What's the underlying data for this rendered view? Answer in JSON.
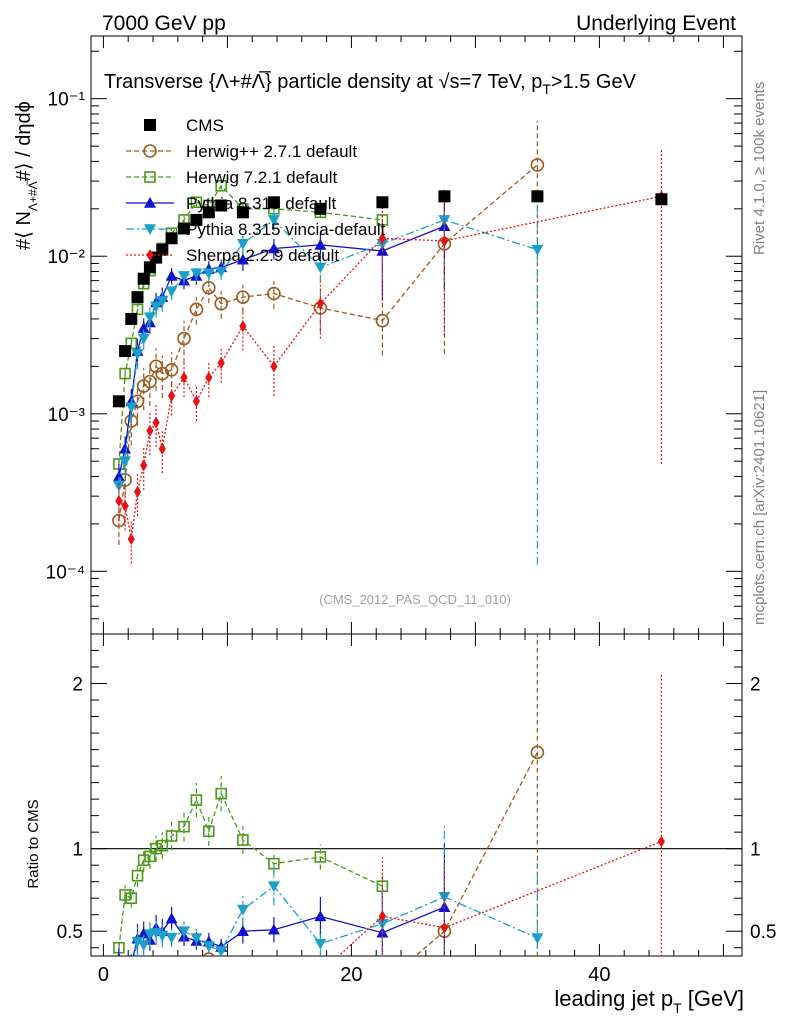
{
  "header": {
    "left": "7000 GeV pp",
    "right": "Underlying Event"
  },
  "side": {
    "rivet": "Rivet 4.1.0, ≥ 100k events",
    "mcplots": "mcplots.cern.ch [arXiv:2401.10621]"
  },
  "chart_data": {
    "type": "scatter",
    "title": "Transverse {Λ+#Λ̅} particle density at √s=7 TeV, pT>1.5 GeV",
    "title_parts": {
      "main": "Transverse {Λ+#Λ̅} particle density at √s=7 TeV, p",
      "sub": "T",
      "tail": ">1.5 GeV"
    },
    "ylabel_parts": {
      "pre": "#⟨ N",
      "sub": "Λ+#Λ̅",
      "mid": "#⟩ / dηdϕ"
    },
    "xlabel_parts": {
      "main": "leading jet p",
      "sub": "T",
      "tail": " [GeV]"
    },
    "ratio_ylabel": "Ratio to CMS",
    "watermark": "(CMS_2012_PAS_QCD_11_010)",
    "xlim": [
      -1,
      51.5
    ],
    "ylim_main": [
      4e-05,
      0.25
    ],
    "ylim_ratio": [
      0.35,
      2.3
    ],
    "x_ticks": [
      0,
      20,
      40
    ],
    "x_tick_labels": [
      "0",
      "20",
      "40"
    ],
    "y_ticks_main": [
      0.0001,
      0.001,
      0.01,
      0.1
    ],
    "y_tick_labels_main": [
      "10⁻⁴",
      "10⁻³",
      "10⁻²",
      "10⁻¹"
    ],
    "y_ticks_ratio": [
      0.5,
      1,
      2
    ],
    "y_tick_labels_ratio": [
      "0.5",
      "1",
      "2"
    ],
    "legend_position": "top-left",
    "series": [
      {
        "name": "CMS",
        "color": "#000000",
        "marker": "square-filled",
        "dash": "",
        "x": [
          1.25,
          1.75,
          2.25,
          2.75,
          3.25,
          3.75,
          4.25,
          4.75,
          5.5,
          6.5,
          7.5,
          8.5,
          9.5,
          11.25,
          13.75,
          17.5,
          22.5,
          27.5,
          35,
          45
        ],
        "y": [
          0.0012,
          0.0025,
          0.004,
          0.0055,
          0.0072,
          0.0085,
          0.0098,
          0.011,
          0.013,
          0.015,
          0.017,
          0.019,
          0.021,
          0.019,
          0.022,
          0.02,
          0.022,
          0.024,
          0.024,
          0.023
        ],
        "err": [
          0,
          0,
          0,
          0,
          0,
          0,
          0,
          0,
          0,
          0,
          0,
          0,
          0,
          0,
          0,
          0,
          0,
          0,
          0,
          0
        ]
      },
      {
        "name": "Herwig++ 2.7.1 default",
        "color": "#9b5a1e",
        "marker": "circle-open",
        "dash": "5,3",
        "x": [
          1.25,
          1.75,
          2.25,
          2.75,
          3.25,
          3.75,
          4.25,
          4.75,
          5.5,
          6.5,
          7.5,
          8.5,
          9.5,
          11.25,
          13.75,
          17.5,
          22.5,
          27.5,
          35,
          45
        ],
        "y": [
          0.00021,
          0.00038,
          0.0009,
          0.0012,
          0.0015,
          0.0016,
          0.002,
          0.0018,
          0.0019,
          0.003,
          0.0046,
          0.0063,
          0.005,
          0.0055,
          0.0058,
          0.0047,
          0.0039,
          0.012,
          0.038,
          0
        ],
        "err": [
          0.3,
          0.3,
          0.3,
          0.3,
          0.3,
          0.3,
          0.3,
          0.3,
          0.3,
          0.3,
          0.2,
          0.2,
          0.2,
          0.2,
          0.2,
          0.3,
          0.4,
          0.8,
          0.9,
          0
        ]
      },
      {
        "name": "Herwig 7.2.1 default",
        "color": "#4a9a1a",
        "marker": "square-open",
        "dash": "5,3",
        "x": [
          1.25,
          1.75,
          2.25,
          2.75,
          3.25,
          3.75,
          4.25,
          4.75,
          5.5,
          6.5,
          7.5,
          8.5,
          9.5,
          11.25,
          13.75,
          17.5,
          22.5,
          27.5,
          35,
          45
        ],
        "y": [
          0.00048,
          0.0018,
          0.0028,
          0.0046,
          0.0067,
          0.0081,
          0.0098,
          0.0112,
          0.014,
          0.017,
          0.022,
          0.021,
          0.028,
          0.02,
          0.02,
          0.019,
          0.017,
          0,
          0,
          0
        ],
        "err": [
          0.08,
          0.08,
          0.08,
          0.08,
          0.08,
          0.08,
          0.08,
          0.08,
          0.08,
          0.08,
          0.08,
          0.08,
          0.08,
          0.08,
          0.08,
          0.08,
          0.08,
          0,
          0,
          0
        ]
      },
      {
        "name": "Pythia 8.315 default",
        "color": "#1010d0",
        "marker": "triangle-up",
        "dash": "",
        "x": [
          1.25,
          1.75,
          2.25,
          2.75,
          3.25,
          3.75,
          4.25,
          4.75,
          5.5,
          6.5,
          7.5,
          8.5,
          9.5,
          11.25,
          13.75,
          17.5,
          22.5,
          27.5
        ],
        "y": [
          0.0004,
          0.0006,
          0.0012,
          0.0025,
          0.0035,
          0.0038,
          0.0051,
          0.0055,
          0.0075,
          0.007,
          0.0075,
          0.0083,
          0.0085,
          0.0095,
          0.0112,
          0.0118,
          0.0108,
          0.0155
        ],
        "err": [
          0.2,
          0.2,
          0.2,
          0.2,
          0.15,
          0.15,
          0.15,
          0.15,
          0.12,
          0.12,
          0.12,
          0.12,
          0.12,
          0.15,
          0.15,
          0.2,
          0.5,
          0.6
        ]
      },
      {
        "name": "Pythia 8.315 vincia-default",
        "color": "#1aa0c8",
        "marker": "triangle-down",
        "dash": "8,3,2,3",
        "x": [
          1.25,
          1.75,
          2.25,
          2.75,
          3.25,
          3.75,
          4.25,
          4.75,
          5.5,
          6.5,
          7.5,
          8.5,
          9.5,
          11.25,
          13.75,
          17.5,
          22.5,
          27.5,
          35
        ],
        "y": [
          0.00035,
          0.0005,
          0.0011,
          0.0024,
          0.003,
          0.0041,
          0.0048,
          0.0052,
          0.006,
          0.0075,
          0.0078,
          0.0078,
          0.008,
          0.012,
          0.017,
          0.0085,
          0.012,
          0.017,
          0.011
        ],
        "err": [
          0.2,
          0.2,
          0.2,
          0.2,
          0.15,
          0.15,
          0.15,
          0.15,
          0.12,
          0.12,
          0.12,
          0.12,
          0.12,
          0.15,
          0.15,
          0.2,
          0.4,
          0.6,
          0.99
        ]
      },
      {
        "name": "Sherpa 2.2.9 default",
        "color": "#e81010",
        "marker": "diamond",
        "dash": "2,2",
        "x": [
          1.25,
          1.75,
          2.25,
          2.75,
          3.25,
          3.75,
          4.25,
          4.75,
          5.5,
          6.5,
          7.5,
          8.5,
          9.5,
          11.25,
          13.75,
          17.5,
          22.5,
          27.5,
          45
        ],
        "y": [
          0.00028,
          0.00026,
          0.00016,
          0.00032,
          0.00047,
          0.00078,
          0.00088,
          0.0006,
          0.0013,
          0.0017,
          0.0012,
          0.0017,
          0.0021,
          0.0036,
          0.002,
          0.005,
          0.013,
          0.0125,
          0.024
        ],
        "err": [
          0.3,
          0.3,
          0.3,
          0.3,
          0.3,
          0.3,
          0.3,
          0.3,
          0.25,
          0.25,
          0.25,
          0.25,
          0.25,
          0.3,
          0.35,
          0.4,
          0.6,
          0.75,
          0.98
        ]
      }
    ]
  }
}
